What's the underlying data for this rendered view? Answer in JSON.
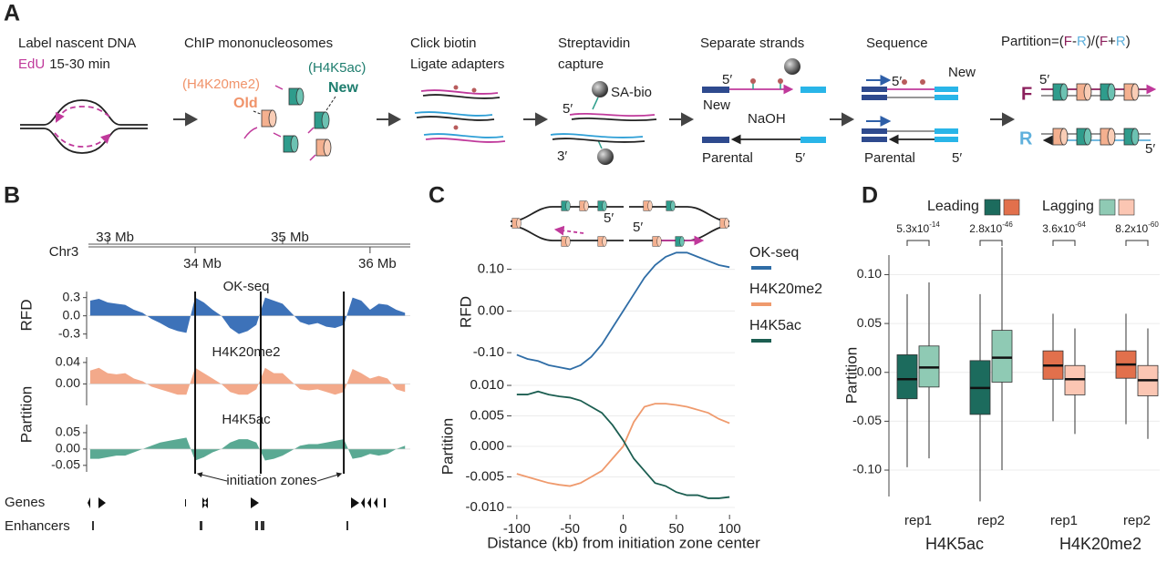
{
  "panels": {
    "a": "A",
    "b": "B",
    "c": "C",
    "d": "D"
  },
  "panel_a": {
    "step1": {
      "title": "Label nascent DNA",
      "label": "EdU",
      "duration": "15-30 min"
    },
    "step2": {
      "title": "ChIP mononucleosomes",
      "old_mark": "(H4K20me2)",
      "old": "Old",
      "new_mark": "(H4K5ac)",
      "new": "New"
    },
    "step3": {
      "title": [
        "Click biotin",
        "Ligate adapters"
      ]
    },
    "step4": {
      "title": [
        "Streptavidin",
        "capture"
      ],
      "bead": "SA-bio",
      "end5": "5′",
      "end3": "3′"
    },
    "step5": {
      "title": "Separate strands",
      "new_end": "5′",
      "new": "New",
      "treatment": "NaOH",
      "parental": "Parental",
      "parental_end": "5′"
    },
    "step6": {
      "title": "Sequence",
      "new_end": "5′",
      "new": "New",
      "parental": "Parental",
      "parental_end": "5′"
    },
    "step7": {
      "formula": [
        "Partition=(",
        "F",
        "-",
        "R",
        ")/(",
        "F",
        "+",
        "R",
        ")"
      ],
      "forward": "F",
      "forward_end": "5′",
      "reverse": "R",
      "reverse_end": "5′"
    }
  },
  "panel_b": {
    "genes": "Genes",
    "enhancers": "Enhancers"
  },
  "panel_c": {
    "fork_labels": [
      "5′",
      "5′"
    ]
  },
  "chart_data": [
    {
      "type": "track",
      "xlabel": "Chr3",
      "xlim": [
        32.78,
        36.46
      ],
      "xticks": [
        {
          "value": 33,
          "label": "33 Mb"
        },
        {
          "value": 34,
          "label": "34 Mb"
        },
        {
          "value": 35,
          "label": "35 Mb"
        },
        {
          "value": 36,
          "label": "36 Mb"
        }
      ],
      "ylabels": [
        "RFD",
        "Partition"
      ],
      "zones": [
        34.0,
        34.75,
        35.7
      ],
      "annotation": "initiation zones",
      "x": [
        32.8,
        32.9,
        33.0,
        33.1,
        33.2,
        33.3,
        33.4,
        33.5,
        33.6,
        33.7,
        33.8,
        33.9,
        34.0,
        34.1,
        34.2,
        34.3,
        34.4,
        34.5,
        34.6,
        34.7,
        34.8,
        34.9,
        35.0,
        35.1,
        35.2,
        35.3,
        35.4,
        35.5,
        35.6,
        35.7,
        35.8,
        35.9,
        36.0,
        36.1,
        36.2,
        36.3,
        36.4
      ],
      "series": [
        {
          "name": "OK-seq",
          "color": "#3d72b9",
          "ylim": [
            -0.38,
            0.4
          ],
          "yticks": [
            0.3,
            {
              "value": 0,
              "label": "0.0"
            },
            -0.3
          ],
          "values": [
            0.25,
            0.28,
            0.22,
            0.2,
            0.18,
            0.1,
            0.05,
            -0.05,
            -0.12,
            -0.2,
            -0.25,
            -0.28,
            0.3,
            0.22,
            0.1,
            0.0,
            -0.2,
            -0.3,
            -0.25,
            -0.15,
            0.3,
            0.25,
            0.2,
            0.05,
            -0.1,
            -0.15,
            -0.12,
            -0.18,
            -0.2,
            -0.15,
            0.3,
            0.25,
            0.1,
            0.2,
            0.18,
            0.1,
            0.05
          ]
        },
        {
          "name": "H4K20me2",
          "color": "#f3a98a",
          "ylim": [
            -0.04,
            0.05
          ],
          "yticks": [
            0.04,
            {
              "value": 0,
              "label": "0.00"
            }
          ],
          "values": [
            0.025,
            0.03,
            0.02,
            0.018,
            0.02,
            0.01,
            0.005,
            -0.005,
            -0.01,
            -0.015,
            -0.02,
            -0.02,
            0.03,
            0.02,
            0.01,
            0.0,
            -0.015,
            -0.02,
            -0.02,
            -0.01,
            0.03,
            0.02,
            0.02,
            0.005,
            -0.01,
            -0.012,
            -0.01,
            -0.015,
            -0.02,
            -0.015,
            0.028,
            0.02,
            0.01,
            0.015,
            0.01,
            -0.01,
            -0.015
          ]
        },
        {
          "name": "H4K5ac",
          "color": "#5aa993",
          "ylim": [
            -0.07,
            0.075
          ],
          "yticks": [
            0.05,
            {
              "value": 0,
              "label": "0.00"
            },
            -0.05
          ],
          "values": [
            -0.03,
            -0.03,
            -0.025,
            -0.02,
            -0.02,
            -0.01,
            0.0,
            0.01,
            0.02,
            0.025,
            0.03,
            0.035,
            -0.035,
            -0.025,
            -0.01,
            0.0,
            0.02,
            0.03,
            0.03,
            0.02,
            -0.035,
            -0.03,
            -0.02,
            -0.005,
            0.01,
            0.015,
            0.015,
            0.02,
            0.025,
            0.03,
            -0.03,
            -0.025,
            -0.015,
            -0.02,
            -0.015,
            0.0,
            0.01
          ]
        }
      ]
    },
    {
      "type": "line",
      "ylabel": "RFD",
      "xlim": [
        -105,
        105
      ],
      "ylim": [
        -0.15,
        0.145
      ],
      "yticks": [
        {
          "value": 0.1,
          "label": "0.10"
        },
        {
          "value": 0,
          "label": "0.00"
        },
        {
          "value": -0.1,
          "label": "-0.10"
        }
      ],
      "grid": true,
      "x": [
        -100,
        -90,
        -80,
        -70,
        -60,
        -50,
        -40,
        -30,
        -20,
        -10,
        0,
        10,
        20,
        30,
        40,
        50,
        60,
        70,
        80,
        90,
        100
      ],
      "series": [
        {
          "name": "OK-seq",
          "color": "#2f6da6",
          "values": [
            -0.105,
            -0.115,
            -0.12,
            -0.13,
            -0.135,
            -0.14,
            -0.13,
            -0.11,
            -0.08,
            -0.04,
            0.0,
            0.04,
            0.08,
            0.11,
            0.13,
            0.14,
            0.14,
            0.13,
            0.12,
            0.11,
            0.105
          ]
        }
      ]
    },
    {
      "type": "line",
      "ylabel": "Partition",
      "xlabel": "Distance (kb) from initiation zone center",
      "xlim": [
        -105,
        105
      ],
      "xticks": [
        -100,
        -50,
        0,
        50,
        100
      ],
      "ylim": [
        -0.0112,
        0.0112
      ],
      "yticks": [
        {
          "value": 0.01,
          "label": "0.010"
        },
        {
          "value": 0.005,
          "label": "0.005"
        },
        {
          "value": 0,
          "label": "0.000"
        },
        {
          "value": -0.005,
          "label": "-0.005"
        },
        {
          "value": -0.01,
          "label": "-0.010"
        }
      ],
      "grid": true,
      "x": [
        -100,
        -90,
        -80,
        -70,
        -60,
        -50,
        -40,
        -30,
        -20,
        -10,
        0,
        10,
        20,
        30,
        40,
        50,
        60,
        70,
        80,
        90,
        100
      ],
      "series": [
        {
          "name": "H4K20me2",
          "color": "#ef9a6d",
          "values": [
            -0.0045,
            -0.005,
            -0.0055,
            -0.006,
            -0.0063,
            -0.0065,
            -0.006,
            -0.005,
            -0.004,
            -0.002,
            0.0,
            0.004,
            0.0065,
            0.007,
            0.007,
            0.0068,
            0.0065,
            0.006,
            0.0055,
            0.0045,
            0.0038
          ]
        },
        {
          "name": "H4K5ac",
          "color": "#1c5e51",
          "values": [
            0.0085,
            0.0085,
            0.009,
            0.0085,
            0.0082,
            0.008,
            0.0075,
            0.0065,
            0.0055,
            0.0035,
            0.001,
            -0.002,
            -0.004,
            -0.006,
            -0.0065,
            -0.0075,
            -0.008,
            -0.008,
            -0.0085,
            -0.0085,
            -0.0083
          ]
        }
      ]
    },
    {
      "type": "box",
      "ylabel": "Partition",
      "ylim": [
        -0.127,
        0.12
      ],
      "yticks": [
        {
          "value": 0.1,
          "label": "0.10"
        },
        {
          "value": 0.05,
          "label": "0.05"
        },
        {
          "value": 0,
          "label": "0.00"
        },
        {
          "value": -0.05,
          "label": "-0.05"
        },
        {
          "value": -0.1,
          "label": "-0.10"
        }
      ],
      "grid": true,
      "categories": [
        "rep1",
        "rep2",
        "rep1",
        "rep2"
      ],
      "groups": [
        "H4K5ac",
        "H4K20me2"
      ],
      "series": [
        {
          "name": "Leading",
          "colors": [
            "#1c6b5d",
            "#e2704c"
          ],
          "values": [
            {
              "min": -0.097,
              "q1": -0.027,
              "median": -0.007,
              "q3": 0.018,
              "max": 0.08
            },
            {
              "min": -0.132,
              "q1": -0.043,
              "median": -0.016,
              "q3": 0.012,
              "max": 0.08
            },
            {
              "min": -0.05,
              "q1": -0.007,
              "median": 0.007,
              "q3": 0.022,
              "max": 0.06
            },
            {
              "min": -0.053,
              "q1": -0.006,
              "median": 0.008,
              "q3": 0.022,
              "max": 0.06
            }
          ]
        },
        {
          "name": "Lagging",
          "colors": [
            "#8fcab4",
            "#fbc6b3"
          ],
          "values": [
            {
              "min": -0.088,
              "q1": -0.015,
              "median": 0.005,
              "q3": 0.027,
              "max": 0.092
            },
            {
              "min": -0.1,
              "q1": -0.01,
              "median": 0.015,
              "q3": 0.043,
              "max": 0.128
            },
            {
              "min": -0.063,
              "q1": -0.023,
              "median": -0.007,
              "q3": 0.007,
              "max": 0.045
            },
            {
              "min": -0.068,
              "q1": -0.024,
              "median": -0.008,
              "q3": 0.007,
              "max": 0.045
            }
          ]
        }
      ],
      "pvalues": [
        {
          "base": "5.3x10",
          "exp": "-14"
        },
        {
          "base": "2.8x10",
          "exp": "-46"
        },
        {
          "base": "3.6x10",
          "exp": "-64"
        },
        {
          "base": "8.2x10",
          "exp": "-60"
        }
      ]
    }
  ]
}
